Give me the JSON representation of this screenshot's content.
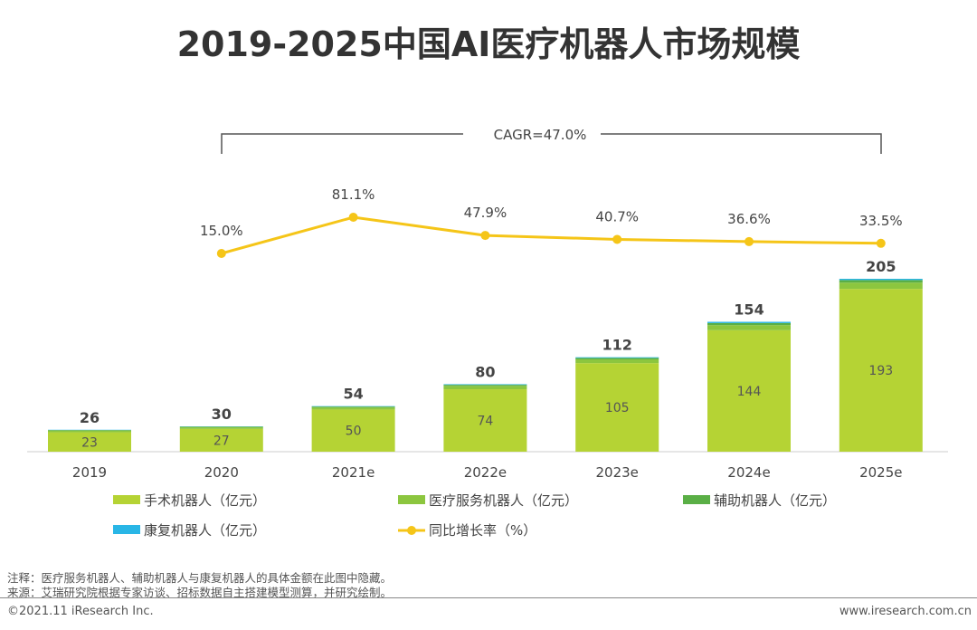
{
  "chart_data": {
    "type": "bar",
    "title": "2019-2025中国AI医疗机器人市场规模",
    "categories": [
      "2019",
      "2020",
      "2021e",
      "2022e",
      "2023e",
      "2024e",
      "2025e"
    ],
    "series": [
      {
        "name": "手术机器人（亿元）",
        "color": "#b5d334",
        "values": [
          23,
          27,
          50,
          74,
          105,
          144,
          193
        ]
      },
      {
        "name": "医疗服务机器人（亿元）",
        "color": "#8cc63f",
        "values": [
          2,
          2,
          2.5,
          4,
          4.5,
          6,
          7.5
        ]
      },
      {
        "name": "辅助机器人（亿元）",
        "color": "#5aaf46",
        "values": [
          0.7,
          0.7,
          1,
          1.3,
          1.7,
          2.5,
          3
        ]
      },
      {
        "name": "康复机器人（亿元）",
        "color": "#29b6e6",
        "values": [
          0.3,
          0.3,
          0.5,
          0.7,
          0.8,
          1.5,
          1.5
        ]
      }
    ],
    "totals": [
      26,
      30,
      54,
      80,
      112,
      154,
      205
    ],
    "line": {
      "name": "同比增长率（%）",
      "color": "#f5c518",
      "x": [
        "2020",
        "2021e",
        "2022e",
        "2023e",
        "2024e",
        "2025e"
      ],
      "values": [
        15.0,
        81.1,
        47.9,
        40.7,
        36.6,
        33.5
      ],
      "labels": [
        "15.0%",
        "81.1%",
        "47.9%",
        "40.7%",
        "36.6%",
        "33.5%"
      ]
    },
    "cagr": "CAGR=47.0%",
    "legend": "bottom"
  },
  "notes": {
    "note": "注释：医疗服务机器人、辅助机器人与康复机器人的具体金额在此图中隐藏。",
    "source": "来源：艾瑞研究院根据专家访谈、招标数据自主搭建模型测算，并研究绘制。"
  },
  "footer": {
    "copyright": "©2021.11 iResearch Inc.",
    "website": "www.iresearch.com.cn"
  }
}
